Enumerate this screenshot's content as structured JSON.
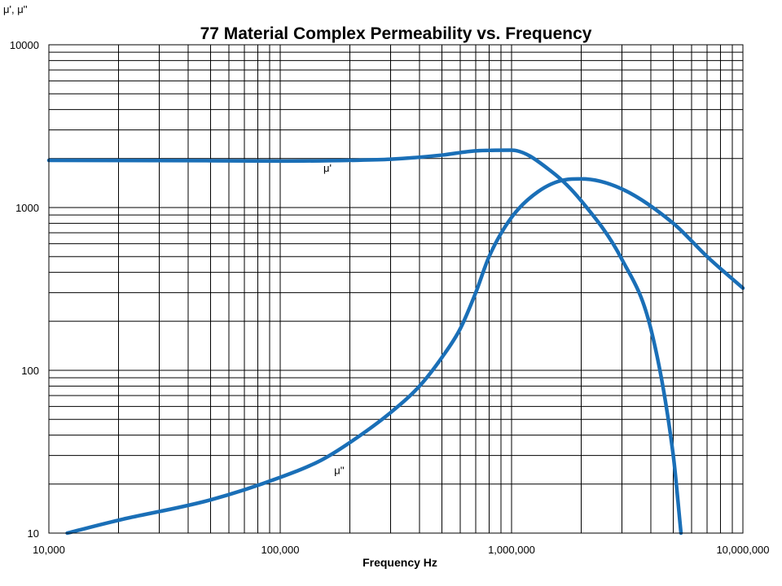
{
  "chart_data": {
    "type": "line",
    "title": "77 Material Complex Permeability vs. Frequency",
    "xlabel": "Frequency Hz",
    "ylabel": "μ', μ''",
    "xscale": "log",
    "yscale": "log",
    "xlim": [
      10000,
      10000000
    ],
    "ylim": [
      10,
      10000
    ],
    "grid": true,
    "legend": "none",
    "series_color": "#1a6fb7",
    "x_ticks": [
      "10,000",
      "100,000",
      "1,000,000",
      "10,000,000"
    ],
    "y_ticks": [
      "10",
      "100",
      "1000",
      "10000"
    ],
    "series": [
      {
        "label": "μ'",
        "x": [
          10000,
          50000,
          100000,
          200000,
          300000,
          500000,
          700000,
          1000000,
          1500000,
          2000000,
          3000000,
          4000000,
          5000000,
          5400000
        ],
        "y": [
          1950,
          1940,
          1930,
          1950,
          1980,
          2100,
          2230,
          2250,
          1650,
          1100,
          480,
          180,
          30,
          10
        ]
      },
      {
        "label": "μ''",
        "x": [
          12000,
          20000,
          50000,
          100000,
          150000,
          200000,
          300000,
          400000,
          500000,
          600000,
          700000,
          800000,
          1000000,
          1300000,
          1700000,
          2000000,
          3000000,
          5000000,
          7000000,
          10000000
        ],
        "y": [
          10,
          12,
          16,
          22,
          28,
          36,
          55,
          80,
          120,
          180,
          300,
          500,
          870,
          1250,
          1480,
          1500,
          1300,
          800,
          500,
          320
        ]
      }
    ],
    "annotations": [
      {
        "text": "μ'",
        "x": 160000,
        "y": 1660
      },
      {
        "text": "μ''",
        "x": 180000,
        "y": 23
      }
    ]
  }
}
